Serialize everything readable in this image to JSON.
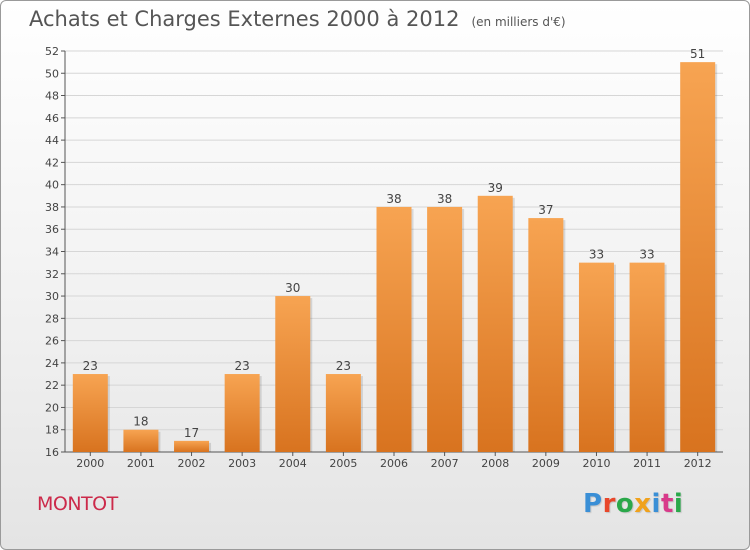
{
  "header": {
    "title": "Achats et Charges Externes 2000 à 2012",
    "subtitle": "(en milliers d'€)"
  },
  "footer": {
    "town": "MONTOT",
    "logo_text": "Proxiti",
    "logo_colors": [
      "#3a8fd6",
      "#e8472a",
      "#2aa84a",
      "#f0a21c",
      "#3a8fd6",
      "#d83a8a",
      "#2aa84a"
    ]
  },
  "colors": {
    "bar_light": "#f7a452",
    "bar_dark": "#d8731f",
    "town": "#cc2a4a"
  },
  "chart_data": {
    "type": "bar",
    "title": "Achats et Charges Externes 2000 à 2012",
    "subtitle": "(en milliers d'€)",
    "categories": [
      "2000",
      "2001",
      "2002",
      "2003",
      "2004",
      "2005",
      "2006",
      "2007",
      "2008",
      "2009",
      "2010",
      "2011",
      "2012"
    ],
    "values": [
      23,
      18,
      17,
      23,
      30,
      23,
      38,
      38,
      39,
      37,
      33,
      33,
      51
    ],
    "ylim": [
      16,
      52
    ],
    "yticks": [
      16,
      18,
      20,
      22,
      24,
      26,
      28,
      30,
      32,
      34,
      36,
      38,
      40,
      42,
      44,
      46,
      48,
      50,
      52
    ],
    "grid": true,
    "data_labels": true
  }
}
